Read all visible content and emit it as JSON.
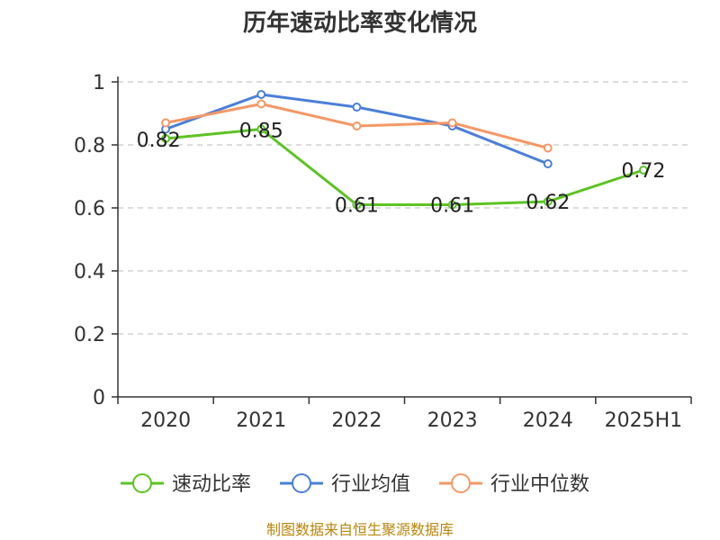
{
  "chart_data": {
    "type": "line",
    "title": "历年速动比率变化情况",
    "categories": [
      "2020",
      "2021",
      "2022",
      "2023",
      "2024",
      "2025H1"
    ],
    "ylim": [
      0,
      1
    ],
    "yticks": [
      "0",
      "0.2",
      "0.4",
      "0.6",
      "0.8",
      "1"
    ],
    "grid": true,
    "legend_position": "bottom",
    "series": [
      {
        "name": "速动比率",
        "color": "#5cc323",
        "values": [
          0.82,
          0.85,
          0.61,
          0.61,
          0.62,
          0.72
        ],
        "labels": [
          "0.82",
          "0.85",
          "0.61",
          "0.61",
          "0.62",
          "0.72"
        ]
      },
      {
        "name": "行业均值",
        "color": "#4a7fd8",
        "values": [
          0.85,
          0.96,
          0.92,
          0.86,
          0.74,
          null
        ]
      },
      {
        "name": "行业中位数",
        "color": "#f59866",
        "values": [
          0.87,
          0.93,
          0.86,
          0.87,
          0.79,
          null
        ]
      }
    ],
    "source": "制图数据来自恒生聚源数据库"
  }
}
